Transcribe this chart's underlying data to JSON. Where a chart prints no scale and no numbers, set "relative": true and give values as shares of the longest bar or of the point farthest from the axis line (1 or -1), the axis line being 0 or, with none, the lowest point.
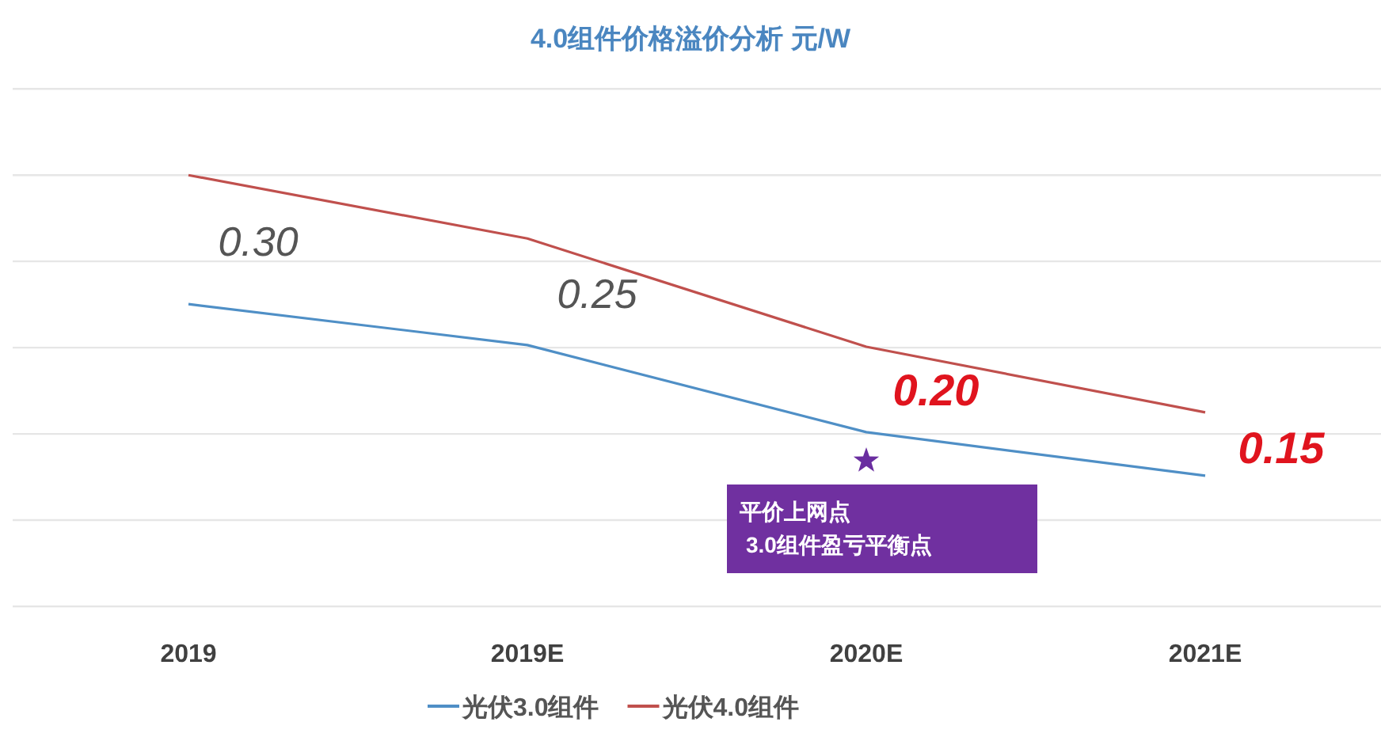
{
  "chart_data": {
    "type": "line",
    "title": "4.0组件价格溢价分析 元/W",
    "categories": [
      "2019",
      "2019E",
      "2020E",
      "2021E"
    ],
    "relative": true,
    "series": [
      {
        "name": "光伏3.0组件",
        "color": "#4f8fc6",
        "values": [
          0.701,
          0.606,
          0.404,
          0.303
        ]
      },
      {
        "name": "光伏4.0组件",
        "color": "#c0504d",
        "values": [
          1,
          0.853,
          0.602,
          0.45
        ]
      }
    ],
    "annotations": [
      "0.30",
      "0.25",
      "0.20",
      "0.15",
      "平价上网点\n3.0组件盈亏平衡点"
    ],
    "grid": "y",
    "legend": "bottom",
    "marker": "none",
    "line_style": "solid"
  }
}
